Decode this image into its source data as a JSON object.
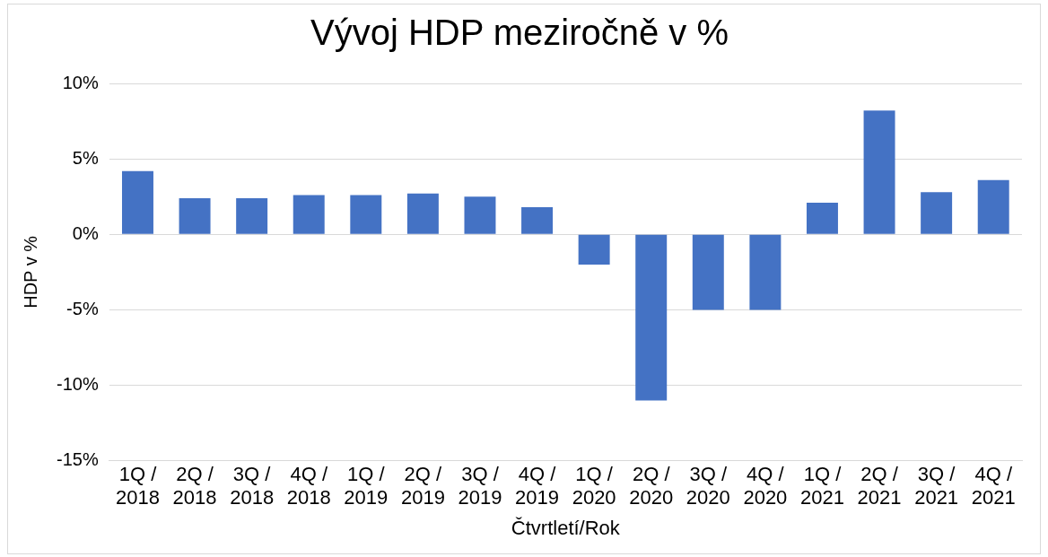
{
  "chart_data": {
    "type": "bar",
    "title": "Vývoj HDP meziročně v %",
    "xlabel": "Čtvrtletí/Rok",
    "ylabel": "HDP v %",
    "categories": [
      "1Q / 2018",
      "2Q / 2018",
      "3Q / 2018",
      "4Q / 2018",
      "1Q / 2019",
      "2Q / 2019",
      "3Q / 2019",
      "4Q / 2019",
      "1Q / 2020",
      "2Q / 2020",
      "3Q / 2020",
      "4Q / 2020",
      "1Q / 2021",
      "2Q / 2021",
      "3Q / 2021",
      "4Q / 2021"
    ],
    "values": [
      4.2,
      2.4,
      2.4,
      2.6,
      2.6,
      2.7,
      2.5,
      1.8,
      -2.0,
      -11.0,
      -5.0,
      -5.0,
      2.1,
      8.2,
      2.8,
      3.6
    ],
    "color": "#4472c4",
    "ylim": [
      -15,
      10
    ],
    "yticks": [
      {
        "value": -15,
        "label": "-15%"
      },
      {
        "value": -10,
        "label": "-10%"
      },
      {
        "value": -5,
        "label": "-5%"
      },
      {
        "value": 0,
        "label": "0%"
      },
      {
        "value": 5,
        "label": "5%"
      },
      {
        "value": 10,
        "label": "10%"
      }
    ],
    "grid": "y",
    "legend": false
  }
}
